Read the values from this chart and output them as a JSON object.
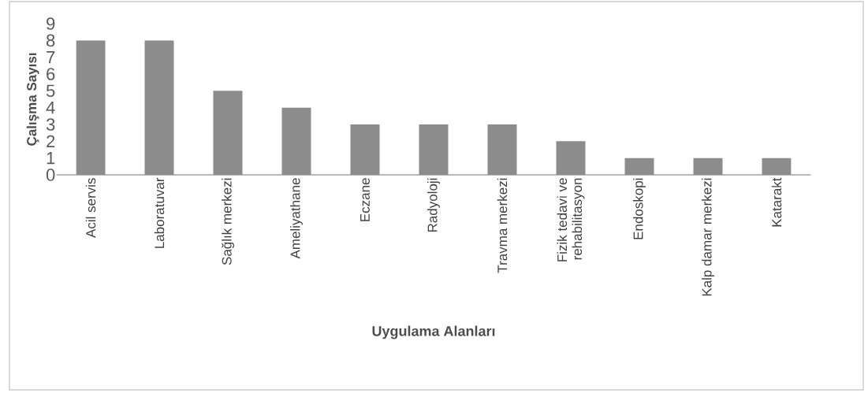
{
  "chart_data": {
    "type": "bar",
    "categories": [
      "Acil servis",
      "Laboratuvar",
      "Sağlık merkezi",
      "Ameliyathane",
      "Eczane",
      "Radyoloji",
      "Travma merkezi",
      "Fizik tedavi ve rehabilitasyon",
      "Endoskopi",
      "Kalp damar merkezi",
      "Katarakt"
    ],
    "values": [
      8,
      8,
      5,
      4,
      3,
      3,
      3,
      2,
      1,
      1,
      1
    ],
    "color": "#8c8c8c",
    "xlabel": "Uygulama Alanları",
    "ylabel": "Çalışma Sayısı",
    "ylim": [
      0,
      9
    ],
    "yticks": [
      0,
      1,
      2,
      3,
      4,
      5,
      6,
      7,
      8,
      9
    ],
    "grid": false
  }
}
